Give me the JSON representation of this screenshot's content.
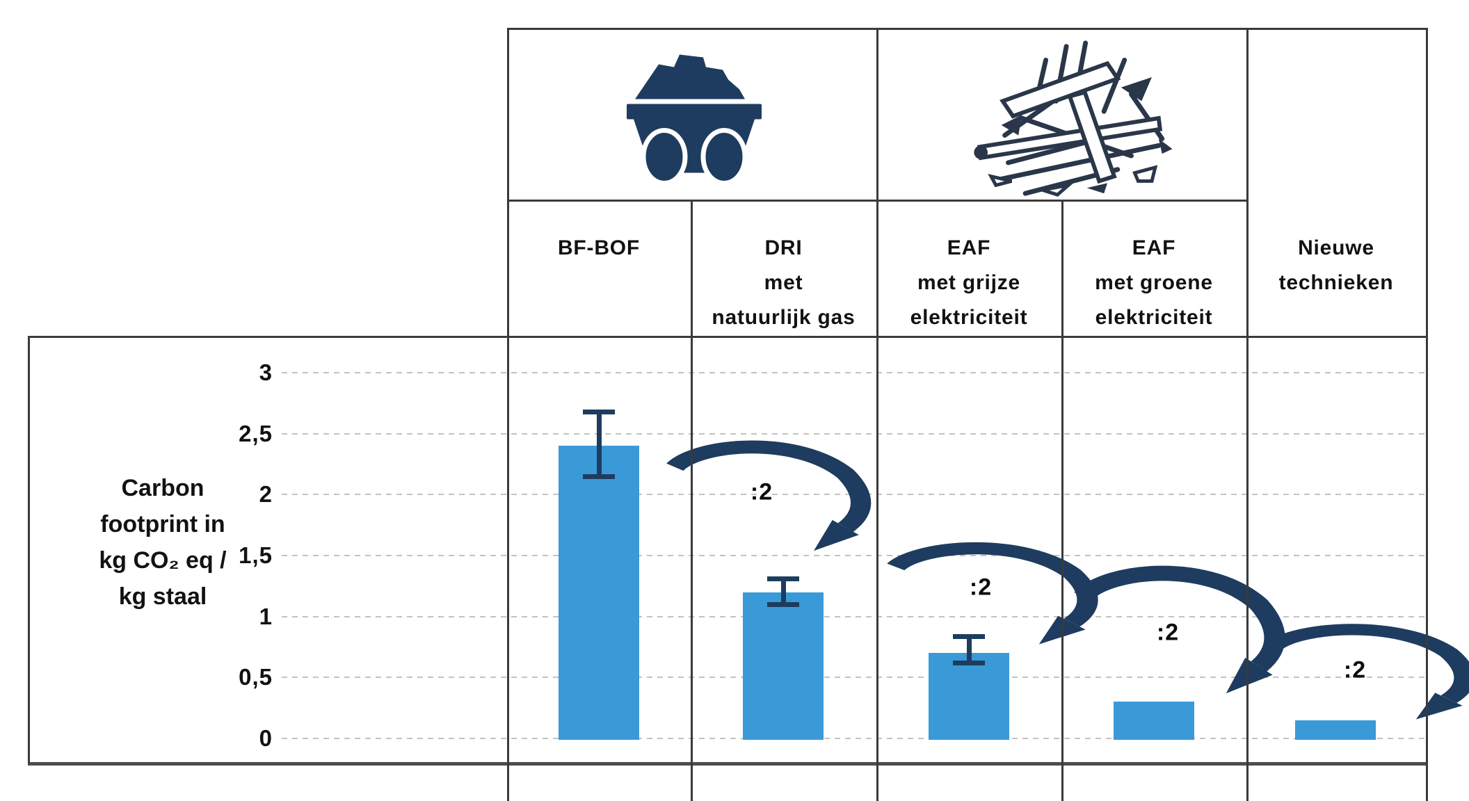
{
  "header": {
    "icons": [
      {
        "name": "coal-cart-icon",
        "spans_columns": [
          "BF-BOF",
          "DRI met natuurlijk gas"
        ]
      },
      {
        "name": "scrap-metal-icon",
        "spans_columns": [
          "EAF met grijze elektriciteit",
          "EAF met groene elektriciteit"
        ]
      }
    ],
    "columns": [
      {
        "lines": [
          "BF-BOF"
        ]
      },
      {
        "lines": [
          "DRI",
          "met",
          "natuurlijk gas"
        ]
      },
      {
        "lines": [
          "EAF",
          "met grijze",
          "elektriciteit"
        ]
      },
      {
        "lines": [
          "EAF",
          "met groene",
          "elektriciteit"
        ]
      },
      {
        "lines": [
          "Nieuwe",
          "technieken"
        ]
      }
    ]
  },
  "y_axis": {
    "title_lines": [
      "Carbon",
      "footprint in",
      "kg CO₂ eq /",
      "kg staal"
    ],
    "ticks": [
      "3",
      "2,5",
      "2",
      "1,5",
      "1",
      "0,5",
      "0"
    ],
    "tick_values": [
      3,
      2.5,
      2,
      1.5,
      1,
      0.5,
      0
    ]
  },
  "chart_data": {
    "type": "bar",
    "categories": [
      "BF-BOF",
      "DRI met natuurlijk gas",
      "EAF met grijze elektriciteit",
      "EAF met groene elektriciteit",
      "Nieuwe technieken"
    ],
    "values": [
      2.4,
      1.2,
      0.7,
      0.3,
      0.15
    ],
    "error_bars": [
      {
        "low": 2.15,
        "high": 2.68
      },
      {
        "low": 1.1,
        "high": 1.31
      },
      {
        "low": 0.62,
        "high": 0.84
      },
      null,
      null
    ],
    "annotations": [
      ":2",
      ":2",
      ":2",
      ":2"
    ],
    "title": "",
    "xlabel": "",
    "ylabel": "Carbon footprint in kg CO₂ eq / kg staal",
    "ylim": [
      0,
      3
    ],
    "ytick_step": 0.5,
    "grid": "horizontal-dashed",
    "legend": "none",
    "bar_color": "#3A9AD8"
  },
  "colors": {
    "bar": "#3A9AD8",
    "navy": "#1E3C5F",
    "scrap_ink": "#2A3649",
    "grid": "#C2C2C2",
    "border": "#3A3A3A",
    "text": "#101214"
  }
}
